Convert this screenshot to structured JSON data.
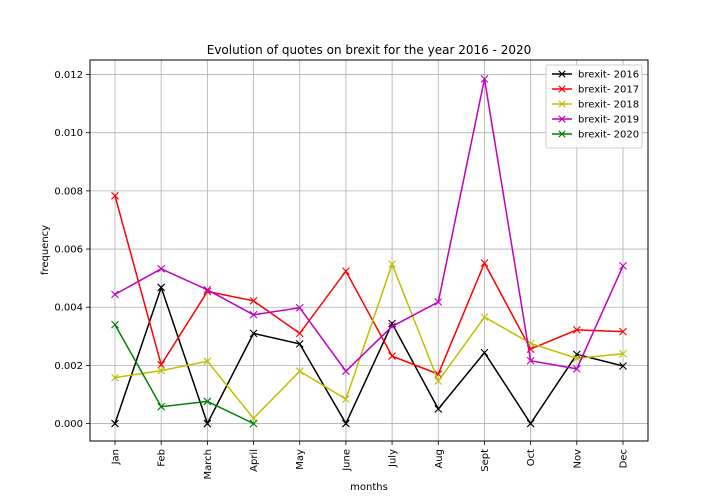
{
  "chart_data": {
    "type": "line",
    "title": "Evolution of quotes on brexit for the year 2016 - 2020",
    "xlabel": "months",
    "ylabel": "frequency",
    "categories": [
      "Jan",
      "Feb",
      "March",
      "April",
      "May",
      "June",
      "July",
      "Aug",
      "Sept",
      "Oct",
      "Nov",
      "Dec"
    ],
    "ylim": [
      -0.0006,
      0.0125
    ],
    "yticks": [
      "0.000",
      "0.002",
      "0.004",
      "0.006",
      "0.008",
      "0.010",
      "0.012"
    ],
    "ytick_values": [
      0,
      0.002,
      0.004,
      0.006,
      0.008,
      0.01,
      0.012
    ],
    "grid": true,
    "legend_position": "top-right",
    "marker": "x",
    "series": [
      {
        "name": "brexit- 2016",
        "color": "#000000",
        "values": [
          0.0,
          0.00468,
          0.0,
          0.0031,
          0.00274,
          0.0,
          0.00344,
          0.0005,
          0.00244,
          0.0,
          0.00238,
          0.00198
        ]
      },
      {
        "name": "brexit- 2017",
        "color": "#ff0000",
        "values": [
          0.00783,
          0.00202,
          0.00454,
          0.00422,
          0.0031,
          0.00524,
          0.00232,
          0.0017,
          0.00552,
          0.00256,
          0.00322,
          0.00316
        ]
      },
      {
        "name": "brexit- 2018",
        "color": "#bfbf00",
        "values": [
          0.00158,
          0.00182,
          0.00214,
          0.00018,
          0.0018,
          0.00084,
          0.00548,
          0.00146,
          0.00366,
          0.00276,
          0.00224,
          0.0024
        ]
      },
      {
        "name": "brexit- 2019",
        "color": "#bf00bf",
        "values": [
          0.00444,
          0.00532,
          0.0046,
          0.00374,
          0.00398,
          0.0018,
          0.00334,
          0.00418,
          0.01185,
          0.00216,
          0.00188,
          0.00542
        ]
      },
      {
        "name": "brexit- 2020",
        "color": "#008000",
        "values": [
          0.0034,
          0.00058,
          0.00076,
          0.0,
          null,
          null,
          null,
          null,
          null,
          null,
          null,
          null
        ]
      }
    ]
  }
}
